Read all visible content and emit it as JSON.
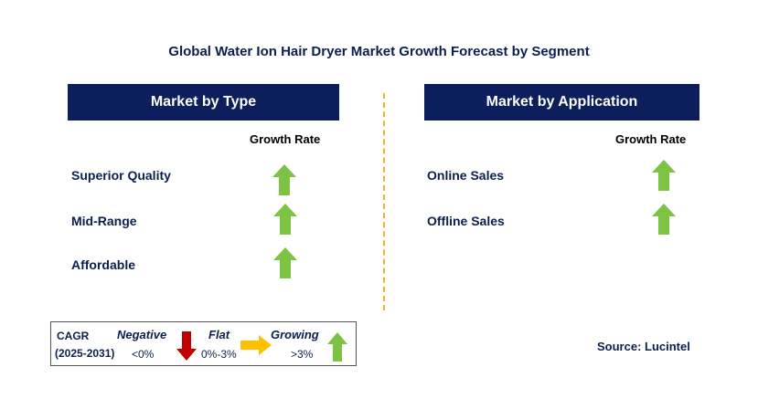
{
  "title": "Global Water Ion Hair Dryer Market Growth Forecast by Segment",
  "left_panel": {
    "header": "Market by Type",
    "growth_rate_label": "Growth Rate",
    "rows": [
      {
        "label": "Superior Quality",
        "trend": "growing"
      },
      {
        "label": "Mid-Range",
        "trend": "growing"
      },
      {
        "label": "Affordable",
        "trend": "growing"
      }
    ]
  },
  "right_panel": {
    "header": "Market by Application",
    "growth_rate_label": "Growth Rate",
    "rows": [
      {
        "label": "Online Sales",
        "trend": "growing"
      },
      {
        "label": "Offline Sales",
        "trend": "growing"
      }
    ]
  },
  "legend": {
    "cagr": "CAGR",
    "period": "(2025-2031)",
    "negative_label": "Negative",
    "negative_range": "<0%",
    "flat_label": "Flat",
    "flat_range": "0%-3%",
    "growing_label": "Growing",
    "growing_range": ">3%"
  },
  "source": "Source: Lucintel",
  "colors": {
    "header_bg": "#0c1f5c",
    "growing_arrow": "#7dc243",
    "negative_arrow": "#c00000",
    "flat_arrow": "#ffc000",
    "divider": "#f0b323"
  }
}
